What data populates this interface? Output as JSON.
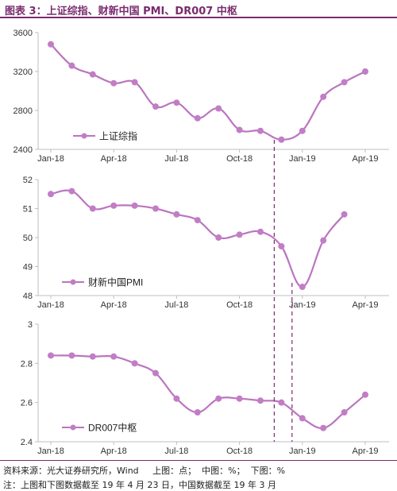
{
  "header": {
    "title": "图表 3：上证综指、财新中国 PMI、DR007 中枢"
  },
  "footer": {
    "source": "资料来源：光大证券研究所，Wind     上图：点；  中图：%；  下图：%",
    "note": "注：上图和下图数据截至 19 年 4 月 23 日，中国数据截至 19 年 3 月"
  },
  "colors": {
    "series": "#bb75bf",
    "marker": "#c27dc6",
    "title": "#7a2c6e",
    "axis": "#bfbfbf",
    "guide": "#7a2c6e"
  },
  "chart_data": [
    {
      "type": "line",
      "x": [
        "Jan-18",
        "Feb-18",
        "Mar-18",
        "Apr-18",
        "May-18",
        "Jun-18",
        "Jul-18",
        "Aug-18",
        "Sep-18",
        "Oct-18",
        "Nov-18",
        "Dec-18",
        "Jan-19",
        "Feb-19",
        "Mar-19",
        "Apr-19"
      ],
      "xticks": [
        "Jan-18",
        "Apr-18",
        "Jul-18",
        "Oct-18",
        "Jan-19",
        "Apr-19"
      ],
      "series": [
        {
          "name": "上证综指",
          "values": [
            3480,
            3260,
            3170,
            3080,
            3090,
            2840,
            2880,
            2720,
            2820,
            2600,
            2590,
            2500,
            2590,
            2940,
            3090,
            3200
          ]
        }
      ],
      "ylim": [
        2400,
        3600
      ],
      "yticks": [
        2400,
        2800,
        3200,
        3600
      ],
      "legend": "bottom-left",
      "grid": false
    },
    {
      "type": "line",
      "x": [
        "Jan-18",
        "Feb-18",
        "Mar-18",
        "Apr-18",
        "May-18",
        "Jun-18",
        "Jul-18",
        "Aug-18",
        "Sep-18",
        "Oct-18",
        "Nov-18",
        "Dec-18",
        "Jan-19",
        "Feb-19",
        "Mar-19",
        "Apr-19"
      ],
      "xticks": [
        "Jan-18",
        "Apr-18",
        "Jul-18",
        "Oct-18",
        "Jan-19",
        "Apr-19"
      ],
      "series": [
        {
          "name": "财新中国PMI",
          "values": [
            51.5,
            51.6,
            51.0,
            51.1,
            51.1,
            51.0,
            50.8,
            50.6,
            50.0,
            50.1,
            50.2,
            49.7,
            48.3,
            49.9,
            50.8,
            null
          ]
        }
      ],
      "ylim": [
        48,
        52
      ],
      "yticks": [
        48,
        49,
        50,
        51,
        52
      ],
      "legend": "bottom-left",
      "grid": false
    },
    {
      "type": "line",
      "x": [
        "Jan-18",
        "Feb-18",
        "Mar-18",
        "Apr-18",
        "May-18",
        "Jun-18",
        "Jul-18",
        "Aug-18",
        "Sep-18",
        "Oct-18",
        "Nov-18",
        "Dec-18",
        "Jan-19",
        "Feb-19",
        "Mar-19",
        "Apr-19"
      ],
      "xticks": [
        "Jan-18",
        "Apr-18",
        "Jul-18",
        "Oct-18",
        "Jan-19",
        "Apr-19"
      ],
      "series": [
        {
          "name": "DR007中枢",
          "values": [
            2.84,
            2.84,
            2.835,
            2.835,
            2.8,
            2.75,
            2.62,
            2.55,
            2.62,
            2.62,
            2.61,
            2.6,
            2.52,
            2.47,
            2.55,
            2.64
          ]
        }
      ],
      "ylim": [
        2.4,
        3.0
      ],
      "yticks": [
        2.4,
        2.6,
        2.8,
        3.0
      ],
      "ytick_labels": [
        "2.4",
        "2.6",
        "2.8",
        "3"
      ],
      "legend": "bottom-left",
      "grid": false
    }
  ]
}
